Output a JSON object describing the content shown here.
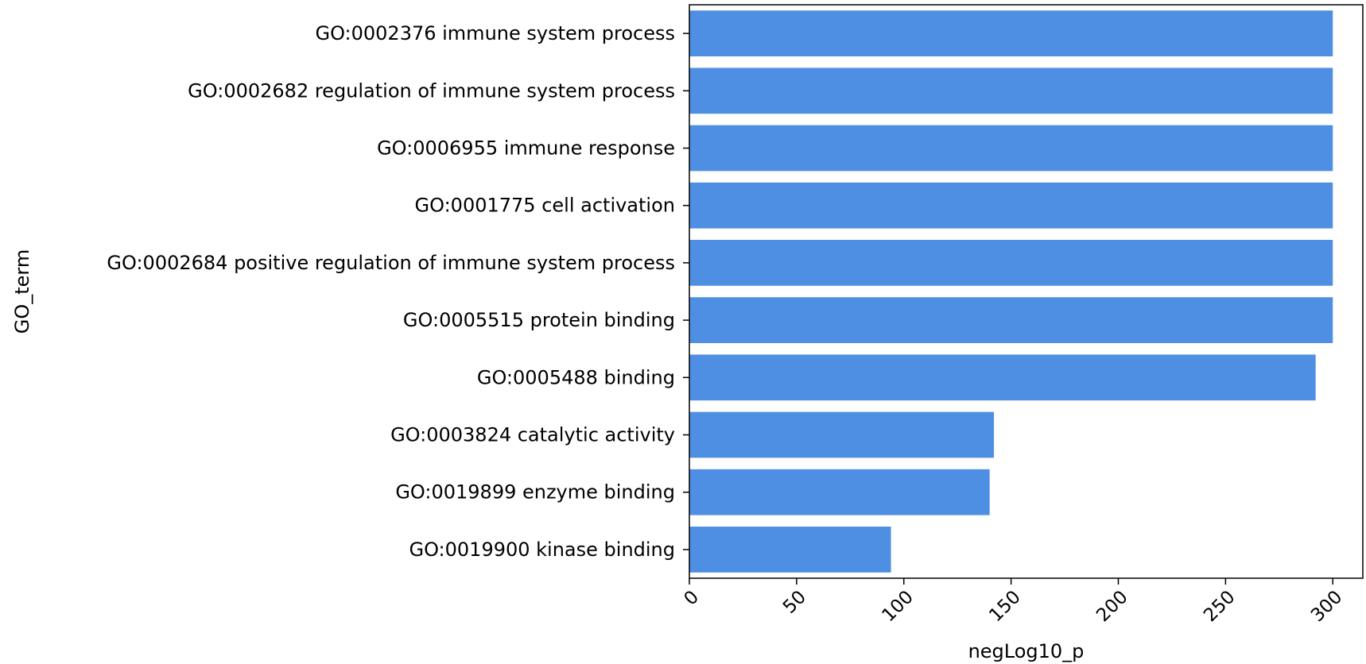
{
  "chart_data": {
    "type": "bar",
    "orientation": "horizontal",
    "categories": [
      "GO:0002376 immune system process",
      "GO:0002682 regulation of immune system process",
      "GO:0006955 immune response",
      "GO:0001775 cell activation",
      "GO:0002684 positive regulation of immune system process",
      "GO:0005515 protein binding",
      "GO:0005488 binding",
      "GO:0003824 catalytic activity",
      "GO:0019899 enzyme binding",
      "GO:0019900 kinase binding"
    ],
    "values": [
      300,
      300,
      300,
      300,
      300,
      300,
      292,
      142,
      140,
      94
    ],
    "xlabel": "negLog10_p",
    "ylabel": "GO_term",
    "title": "",
    "xlim": [
      0,
      314
    ],
    "xticks": [
      "0",
      "50",
      "100",
      "150",
      "200",
      "250",
      "300"
    ],
    "xtick_values": [
      0,
      50,
      100,
      150,
      200,
      250,
      300
    ],
    "bar_color": "#4f8fe3",
    "grid": false,
    "legend": "none"
  }
}
